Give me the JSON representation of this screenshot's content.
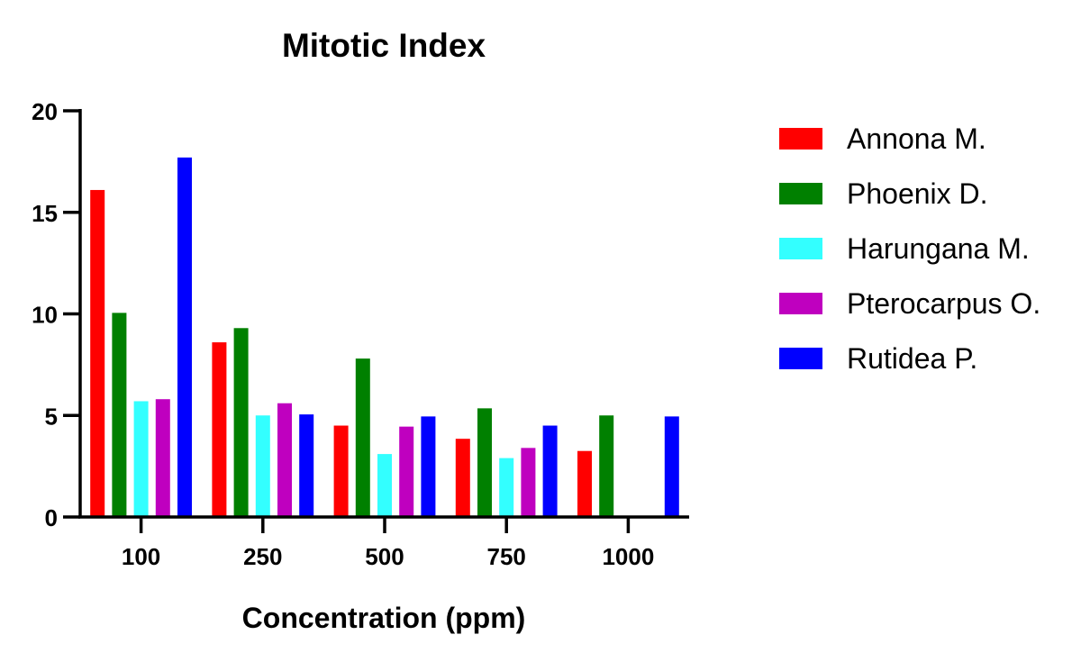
{
  "chart_data": {
    "type": "bar",
    "title": "Mitotic Index",
    "xlabel": "Concentration (ppm)",
    "ylabel": "",
    "categories": [
      "100",
      "250",
      "500",
      "750",
      "1000"
    ],
    "ylim": [
      0,
      20
    ],
    "yticks": [
      0,
      5,
      10,
      15,
      20
    ],
    "grid": false,
    "legend_position": "right",
    "series": [
      {
        "name": "Annona M.",
        "color": "#ff0000",
        "values": [
          16.1,
          8.6,
          4.5,
          3.85,
          3.25
        ]
      },
      {
        "name": "Phoenix D.",
        "color": "#008000",
        "values": [
          10.05,
          9.3,
          7.8,
          5.35,
          5.0
        ]
      },
      {
        "name": "Harungana M.",
        "color": "#33ffff",
        "values": [
          5.7,
          5.0,
          3.1,
          2.9,
          0
        ]
      },
      {
        "name": "Pterocarpus O.",
        "color": "#bf00bf",
        "values": [
          5.8,
          5.6,
          4.45,
          3.4,
          0
        ]
      },
      {
        "name": "Rutidea P.",
        "color": "#0000ff",
        "values": [
          17.7,
          5.05,
          4.95,
          4.5,
          4.95
        ]
      }
    ]
  }
}
